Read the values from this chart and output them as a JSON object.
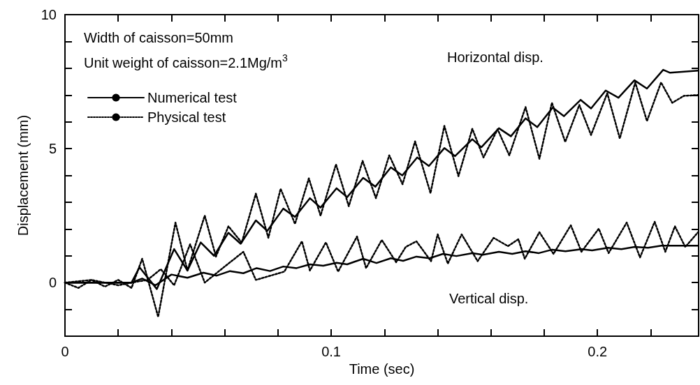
{
  "chart_data": {
    "type": "line",
    "xlabel": "Time (sec)",
    "ylabel": "Displacement (mm)",
    "xlim": [
      0,
      0.238
    ],
    "ylim": [
      -2,
      10
    ],
    "xticks": [
      0,
      {
        "value": 0.02,
        "label": null
      },
      {
        "value": 0.04,
        "label": null
      },
      {
        "value": 0.06,
        "label": null
      },
      {
        "value": 0.08,
        "label": null
      },
      0.1,
      {
        "value": 0.12,
        "label": null
      },
      {
        "value": 0.14,
        "label": null
      },
      {
        "value": 0.16,
        "label": null
      },
      {
        "value": 0.18,
        "label": null
      },
      0.2,
      {
        "value": 0.22,
        "label": null
      }
    ],
    "yticks": [
      {
        "value": -1,
        "label": null
      },
      0,
      {
        "value": 1,
        "label": null
      },
      {
        "value": 2,
        "label": null
      },
      {
        "value": 3,
        "label": null
      },
      {
        "value": 4,
        "label": null
      },
      5,
      {
        "value": 6,
        "label": null
      },
      {
        "value": 7,
        "label": null
      },
      {
        "value": 8,
        "label": null
      },
      {
        "value": 9,
        "label": null
      },
      10
    ],
    "grid": false,
    "legend": "top left",
    "marker": "none",
    "annotations": [
      "Width of caisson=50mm",
      "Unit weight of caisson=2.1Mg/m$^{3}$",
      "Horizontal disp.",
      "Vertical disp."
    ],
    "series": [
      {
        "name": "Numerical test",
        "color": "#000000",
        "line_style": "solid",
        "x": [
          0,
          0.025,
          0.028,
          0.0345,
          0.041,
          0.046,
          0.051,
          0.056,
          0.0614,
          0.066,
          0.0717,
          0.076,
          0.082,
          0.0864,
          0.092,
          0.096,
          0.102,
          0.106,
          0.112,
          0.1166,
          0.1224,
          0.1267,
          0.1323,
          0.1367,
          0.1425,
          0.1465,
          0.153,
          0.1564,
          0.163,
          0.1675,
          0.173,
          0.1774,
          0.1832,
          0.1874,
          0.1937,
          0.1976,
          0.2031,
          0.2079,
          0.2139,
          0.2186,
          0.2247,
          0.2273,
          0.2378
        ],
        "values": [
          0,
          0,
          0.57,
          -0.24,
          1.25,
          0.45,
          1.5,
          1.0,
          1.86,
          1.45,
          2.32,
          1.93,
          2.76,
          2.45,
          3.15,
          2.8,
          3.52,
          3.19,
          3.91,
          3.58,
          4.3,
          4.0,
          4.67,
          4.35,
          5.02,
          4.72,
          5.35,
          5.05,
          5.76,
          5.46,
          6.13,
          5.8,
          6.53,
          6.21,
          6.82,
          6.5,
          7.17,
          6.9,
          7.55,
          7.24,
          7.94,
          7.83,
          7.91
        ]
      },
      {
        "name": "Physical test",
        "color": "#000000",
        "line_style": "dotted",
        "x": [
          0,
          0.005,
          0.01,
          0.015,
          0.02,
          0.025,
          0.029,
          0.035,
          0.0415,
          0.046,
          0.0525,
          0.0567,
          0.0614,
          0.0664,
          0.0717,
          0.0764,
          0.081,
          0.0864,
          0.0916,
          0.096,
          0.1018,
          0.1066,
          0.1118,
          0.1168,
          0.1218,
          0.1268,
          0.1315,
          0.1373,
          0.1425,
          0.1478,
          0.153,
          0.1572,
          0.1625,
          0.1669,
          0.173,
          0.1782,
          0.1829,
          0.1879,
          0.1932,
          0.1976,
          0.2037,
          0.2084,
          0.2142,
          0.2186,
          0.2239,
          0.2281,
          0.2325,
          0.2378
        ],
        "values": [
          0,
          -0.2,
          0.1,
          -0.15,
          0.1,
          -0.2,
          0.89,
          -1.28,
          2.24,
          0.45,
          2.5,
          0.97,
          2.1,
          1.49,
          3.32,
          1.67,
          3.5,
          2.19,
          3.89,
          2.5,
          4.41,
          2.85,
          4.54,
          3.15,
          4.75,
          3.67,
          5.27,
          3.34,
          5.85,
          3.97,
          5.74,
          4.67,
          5.72,
          4.75,
          6.55,
          4.62,
          6.71,
          5.25,
          6.63,
          5.51,
          7.07,
          5.38,
          7.47,
          6.03,
          7.47,
          6.71,
          6.97,
          7.0
        ]
      },
      {
        "color": "#000000",
        "line_style": "solid",
        "x": [
          0,
          0.025,
          0.029,
          0.034,
          0.04,
          0.046,
          0.052,
          0.057,
          0.062,
          0.067,
          0.072,
          0.077,
          0.082,
          0.087,
          0.092,
          0.097,
          0.102,
          0.106,
          0.112,
          0.117,
          0.1224,
          0.127,
          0.132,
          0.137,
          0.142,
          0.147,
          0.153,
          0.157,
          0.163,
          0.168,
          0.173,
          0.178,
          0.183,
          0.188,
          0.194,
          0.198,
          0.204,
          0.209,
          0.214,
          0.219,
          0.224,
          0.2378
        ],
        "values": [
          0,
          0,
          0.15,
          -0.1,
          0.3,
          0.18,
          0.37,
          0.26,
          0.43,
          0.35,
          0.54,
          0.43,
          0.6,
          0.54,
          0.68,
          0.63,
          0.74,
          0.68,
          0.89,
          0.73,
          0.91,
          0.81,
          0.97,
          0.91,
          1.07,
          0.99,
          1.1,
          1.04,
          1.15,
          1.07,
          1.17,
          1.1,
          1.23,
          1.17,
          1.25,
          1.2,
          1.3,
          1.25,
          1.33,
          1.3,
          1.38,
          1.38
        ]
      },
      {
        "color": "#000000",
        "line_style": "dotted",
        "x": [
          0,
          0.01,
          0.02,
          0.025,
          0.031,
          0.036,
          0.041,
          0.047,
          0.0525,
          0.06,
          0.067,
          0.0717,
          0.0824,
          0.089,
          0.092,
          0.098,
          0.1026,
          0.1097,
          0.1131,
          0.119,
          0.1244,
          0.128,
          0.132,
          0.1375,
          0.14,
          0.1438,
          0.149,
          0.155,
          0.161,
          0.1664,
          0.1703,
          0.1727,
          0.1782,
          0.1835,
          0.19,
          0.194,
          0.2005,
          0.2042,
          0.211,
          0.216,
          0.2215,
          0.2255,
          0.2291,
          0.233,
          0.2378
        ],
        "values": [
          0,
          0.1,
          -0.1,
          0,
          0.1,
          0.5,
          -0.1,
          1.43,
          0,
          0.6,
          1.15,
          0.1,
          0.41,
          1.54,
          0.45,
          1.5,
          0.41,
          1.72,
          0.54,
          1.59,
          0.76,
          1.33,
          1.54,
          0.8,
          1.8,
          0.71,
          1.8,
          0.8,
          1.67,
          1.36,
          1.62,
          0.89,
          1.88,
          1.07,
          2.14,
          1.15,
          2.01,
          1.1,
          2.24,
          0.94,
          2.27,
          1.15,
          2.1,
          1.33,
          1.88
        ]
      }
    ]
  }
}
